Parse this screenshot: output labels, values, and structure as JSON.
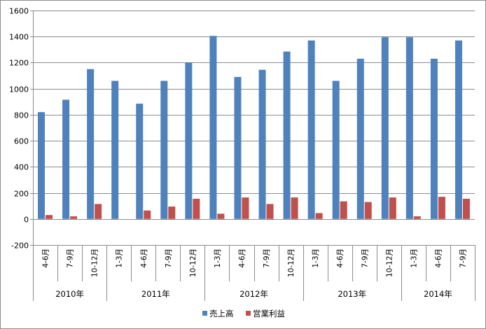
{
  "chart_data": {
    "type": "bar",
    "title": "",
    "xlabel": "",
    "ylabel": "",
    "ylim": [
      -200,
      1600
    ],
    "yticks": [
      -200,
      0,
      200,
      400,
      600,
      800,
      1000,
      1200,
      1400,
      1600
    ],
    "grid": true,
    "legend_position": "bottom",
    "categories": [
      "4-6月",
      "7-9月",
      "10-12月",
      "1-3月",
      "4-6月",
      "7-9月",
      "10-12月",
      "1-3月",
      "4-6月",
      "7-9月",
      "10-12月",
      "1-3月",
      "4-6月",
      "7-9月",
      "10-12月",
      "1-3月",
      "4-6月",
      "7-9月"
    ],
    "groups": [
      {
        "label": "2010年",
        "count": 3
      },
      {
        "label": "2011年",
        "count": 4
      },
      {
        "label": "2012年",
        "count": 4
      },
      {
        "label": "2013年",
        "count": 4
      },
      {
        "label": "2014年",
        "count": 3
      }
    ],
    "series": [
      {
        "name": "売上高",
        "color": "#4f81bd",
        "values": [
          820,
          915,
          1150,
          1060,
          885,
          1060,
          1200,
          1405,
          1090,
          1145,
          1285,
          1370,
          1060,
          1230,
          1395,
          1395,
          1230,
          1370
        ]
      },
      {
        "name": "営業利益",
        "color": "#c0504d",
        "values": [
          30,
          20,
          115,
          0,
          65,
          95,
          155,
          40,
          165,
          115,
          165,
          45,
          135,
          130,
          165,
          20,
          170,
          155
        ]
      }
    ]
  }
}
